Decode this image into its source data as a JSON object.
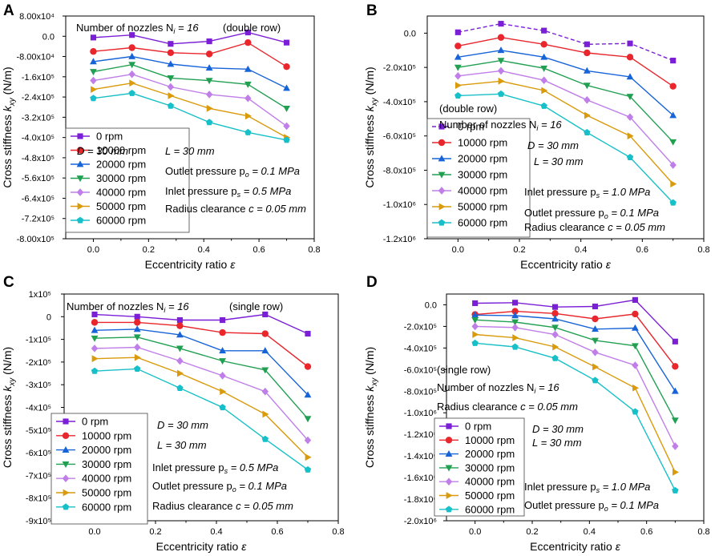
{
  "figure": {
    "title": "Cross stiffness k_xy versus eccentricity ratio, four panels"
  },
  "chart_data": [
    {
      "type": "line",
      "panel": "A",
      "title": "",
      "x": [
        0.0,
        0.14,
        0.28,
        0.42,
        0.56,
        0.7
      ],
      "xlim": [
        -0.1,
        0.8
      ],
      "ylim": [
        -800000,
        80000
      ],
      "xticks": [
        0.0,
        0.2,
        0.4,
        0.6,
        0.8
      ],
      "xtick_labels": [
        "0.0",
        "0.2",
        "0.4",
        "0.6",
        "0.8"
      ],
      "yticks": [
        80000,
        0,
        -80000,
        -160000,
        -240000,
        -320000,
        -400000,
        -480000,
        -560000,
        -640000,
        -720000,
        -800000
      ],
      "ytick_labels": [
        "8.00x10⁴",
        "0.0",
        "-8.00x10⁴",
        "-1.6x10⁵",
        "-2.4x10⁵",
        "-3.2x10⁵",
        "-4.0x10⁵",
        "-4.8x10⁵",
        "-5.6x10⁵",
        "-6.4x10⁵",
        "-7.2x10⁵",
        "-8.00x10⁵"
      ],
      "xlabel": "Eccentricity ratio ε",
      "ylabel_main": "Cross stiffness k",
      "ylabel_sub": "xy",
      "ylabel_unit": " (N/m)",
      "legend": {
        "position": "bottom-left"
      },
      "series": [
        {
          "name": "0 rpm",
          "values": [
            -5000,
            5000,
            -30000,
            -20000,
            15000,
            -25000
          ]
        },
        {
          "name": "10000 rpm",
          "values": [
            -60000,
            -45000,
            -65000,
            -70000,
            -25000,
            -120000
          ]
        },
        {
          "name": "20000 rpm",
          "values": [
            -100000,
            -80000,
            -110000,
            -125000,
            -130000,
            -205000
          ]
        },
        {
          "name": "30000 rpm",
          "values": [
            -140000,
            -112000,
            -165000,
            -175000,
            -190000,
            -285000
          ]
        },
        {
          "name": "40000 rpm",
          "values": [
            -175000,
            -150000,
            -200000,
            -230000,
            -245000,
            -355000
          ]
        },
        {
          "name": "50000 rpm",
          "values": [
            -210000,
            -185000,
            -235000,
            -285000,
            -315000,
            -400000
          ]
        },
        {
          "name": "60000 rpm",
          "values": [
            -245000,
            -225000,
            -275000,
            -340000,
            -380000,
            -410000
          ]
        }
      ],
      "annotations": [
        {
          "text": "Number of nozzles N",
          "sub": "i",
          "tail": " = 16",
          "sub_italic": true,
          "tail_italic": true
        },
        {
          "text": "(double row)"
        },
        {
          "text": "D = 30 mm",
          "italic": true
        },
        {
          "text": "L = 30 mm",
          "italic": true
        },
        {
          "text": "Outlet pressure p",
          "sub": "o",
          "tail": " = 0.1 MPa",
          "tail_italic": true,
          "sub_italic": true
        },
        {
          "text": "Inlet pressure p",
          "sub": "s",
          "tail": " = 0.5 MPa",
          "tail_italic": true,
          "sub_italic": true
        },
        {
          "text": "Radius clearance c = 0.05 mm",
          "italic_from": 17
        }
      ]
    },
    {
      "type": "line",
      "panel": "B",
      "title": "",
      "x": [
        0.0,
        0.14,
        0.28,
        0.42,
        0.56,
        0.7
      ],
      "xlim": [
        -0.1,
        0.8
      ],
      "ylim": [
        -1200000,
        100000
      ],
      "xticks": [
        0.0,
        0.2,
        0.4,
        0.6,
        0.8
      ],
      "xtick_labels": [
        "0.0",
        "0.2",
        "0.4",
        "0.6",
        "0.8"
      ],
      "yticks": [
        0,
        -200000,
        -400000,
        -600000,
        -800000,
        -1000000,
        -1200000
      ],
      "ytick_labels": [
        "0.0",
        "-2.0x10⁵",
        "-4.0x10⁵",
        "-6.0x10⁵",
        "-8.0x10⁵",
        "-1.0x10⁶",
        "-1.2x10⁶"
      ],
      "xlabel": "Eccentricity ratio ε",
      "ylabel_main": "Cross stiffness k",
      "ylabel_sub": "xy",
      "ylabel_unit": " (N/m)",
      "legend": {
        "position": "bottom-left"
      },
      "series": [
        {
          "name": "0 rpm",
          "values": [
            5000,
            55000,
            15000,
            -65000,
            -60000,
            -160000
          ]
        },
        {
          "name": "10000 rpm",
          "values": [
            -75000,
            -25000,
            -65000,
            -115000,
            -140000,
            -310000
          ]
        },
        {
          "name": "20000 rpm",
          "values": [
            -140000,
            -100000,
            -140000,
            -220000,
            -255000,
            -480000
          ]
        },
        {
          "name": "30000 rpm",
          "values": [
            -200000,
            -160000,
            -205000,
            -305000,
            -370000,
            -635000
          ]
        },
        {
          "name": "40000 rpm",
          "values": [
            -250000,
            -220000,
            -275000,
            -390000,
            -490000,
            -770000
          ]
        },
        {
          "name": "50000 rpm",
          "values": [
            -305000,
            -280000,
            -335000,
            -480000,
            -600000,
            -880000
          ]
        },
        {
          "name": "60000 rpm",
          "values": [
            -365000,
            -355000,
            -425000,
            -580000,
            -725000,
            -990000
          ]
        }
      ],
      "annotations": [
        {
          "text": "(double row)"
        },
        {
          "text": "Number of nozzles N",
          "sub": "i",
          "tail": " = 16",
          "sub_italic": true,
          "tail_italic": true
        },
        {
          "text": "D = 30 mm",
          "italic": true
        },
        {
          "text": "L = 30 mm",
          "italic": true
        },
        {
          "text": "Inlet pressure p",
          "sub": "s",
          "tail": " = 1.0 MPa",
          "tail_italic": true,
          "sub_italic": true
        },
        {
          "text": "Outlet pressure p",
          "sub": "o",
          "tail": " = 0.1 MPa",
          "tail_italic": true,
          "sub_italic": true
        },
        {
          "text": "Radius clearance c = 0.05 mm",
          "italic_from": 17
        }
      ]
    },
    {
      "type": "line",
      "panel": "C",
      "title": "",
      "x": [
        0.0,
        0.14,
        0.28,
        0.42,
        0.56,
        0.7
      ],
      "xlim": [
        -0.1,
        0.8
      ],
      "ylim": [
        -900000,
        100000
      ],
      "xticks": [
        0.0,
        0.2,
        0.4,
        0.6,
        0.8
      ],
      "xtick_labels": [
        "0.0",
        "0.2",
        "0.4",
        "0.6",
        "0.8"
      ],
      "yticks": [
        100000,
        0,
        -100000,
        -200000,
        -300000,
        -400000,
        -500000,
        -600000,
        -700000,
        -800000,
        -900000
      ],
      "ytick_labels": [
        "1x10⁵",
        "0",
        "-1x10⁵",
        "-2x10⁵",
        "-3x10⁵",
        "-4x10⁵",
        "-5x10⁵",
        "-6x10⁵",
        "-7x10⁵",
        "-8x10⁵",
        "-9x10⁵"
      ],
      "xlabel": "Eccentricity ratio ε",
      "ylabel_main": "Cross stiffness k",
      "ylabel_sub": "xy",
      "ylabel_unit": " (N/m)",
      "legend": {
        "position": "bottom-left"
      },
      "series": [
        {
          "name": "0 rpm",
          "values": [
            10000,
            0,
            -15000,
            -15000,
            10000,
            -75000
          ]
        },
        {
          "name": "10000 rpm",
          "values": [
            -25000,
            -25000,
            -40000,
            -70000,
            -75000,
            -220000
          ]
        },
        {
          "name": "20000 rpm",
          "values": [
            -60000,
            -55000,
            -80000,
            -150000,
            -150000,
            -345000
          ]
        },
        {
          "name": "30000 rpm",
          "values": [
            -95000,
            -90000,
            -140000,
            -195000,
            -235000,
            -450000
          ]
        },
        {
          "name": "40000 rpm",
          "values": [
            -140000,
            -135000,
            -195000,
            -260000,
            -330000,
            -545000
          ]
        },
        {
          "name": "50000 rpm",
          "values": [
            -185000,
            -180000,
            -250000,
            -330000,
            -430000,
            -620000
          ]
        },
        {
          "name": "60000 rpm",
          "values": [
            -240000,
            -230000,
            -315000,
            -400000,
            -540000,
            -675000
          ]
        }
      ],
      "annotations": [
        {
          "text": "Number of nozzles N",
          "sub": "i",
          "tail": " = 16",
          "sub_italic": true,
          "tail_italic": true
        },
        {
          "text": "(single row)"
        },
        {
          "text": "D = 30 mm",
          "italic": true
        },
        {
          "text": "L = 30 mm",
          "italic": true
        },
        {
          "text": "Inlet pressure p",
          "sub": "s",
          "tail": " = 0.5 MPa",
          "tail_italic": true,
          "sub_italic": true
        },
        {
          "text": "Outlet pressure p",
          "sub": "o",
          "tail": " = 0.1 MPa",
          "tail_italic": true,
          "sub_italic": true
        },
        {
          "text": "Radius clearance c = 0.05 mm",
          "italic_from": 17
        }
      ]
    },
    {
      "type": "line",
      "panel": "D",
      "title": "",
      "x": [
        0.0,
        0.14,
        0.28,
        0.42,
        0.56,
        0.7
      ],
      "xlim": [
        -0.1,
        0.8
      ],
      "ylim": [
        -2000000,
        100000
      ],
      "xticks": [
        0.0,
        0.2,
        0.4,
        0.6,
        0.8
      ],
      "xtick_labels": [
        "0.0",
        "0.2",
        "0.4",
        "0.6",
        "0.8"
      ],
      "yticks": [
        0,
        -200000,
        -400000,
        -600000,
        -800000,
        -1000000,
        -1200000,
        -1400000,
        -1600000,
        -1800000,
        -2000000
      ],
      "ytick_labels": [
        "0.0",
        "-2.0x10⁵",
        "-4.0x10⁵",
        "-6.0x10⁵",
        "-8.0x10⁵",
        "-1.0x10⁶",
        "-1.2x10⁶",
        "-1.4x10⁶",
        "-1.6x10⁶",
        "-1.8x10⁶",
        "-2.0x10⁶"
      ],
      "xlabel": "Eccentricity ratio ε",
      "ylabel_main": "Cross stiffness k",
      "ylabel_sub": "xy",
      "ylabel_unit": " (N/m)",
      "legend": {
        "position": "bottom-left"
      },
      "series": [
        {
          "name": "0 rpm",
          "values": [
            15000,
            20000,
            -20000,
            -15000,
            45000,
            -340000
          ]
        },
        {
          "name": "10000 rpm",
          "values": [
            -90000,
            -60000,
            -80000,
            -130000,
            -85000,
            -570000
          ]
        },
        {
          "name": "20000 rpm",
          "values": [
            -95000,
            -100000,
            -130000,
            -225000,
            -215000,
            -800000
          ]
        },
        {
          "name": "30000 rpm",
          "values": [
            -140000,
            -160000,
            -210000,
            -330000,
            -380000,
            -1070000
          ]
        },
        {
          "name": "40000 rpm",
          "values": [
            -200000,
            -210000,
            -275000,
            -440000,
            -560000,
            -1310000
          ]
        },
        {
          "name": "50000 rpm",
          "values": [
            -275000,
            -305000,
            -390000,
            -575000,
            -770000,
            -1550000
          ]
        },
        {
          "name": "60000 rpm",
          "values": [
            -355000,
            -390000,
            -495000,
            -700000,
            -990000,
            -1720000
          ]
        }
      ],
      "annotations": [
        {
          "text": "(single row)"
        },
        {
          "text": "Number of nozzles N",
          "sub": "i",
          "tail": " = 16",
          "sub_italic": true,
          "tail_italic": true
        },
        {
          "text": "Radius clearance c = 0.05 mm",
          "italic_from": 17
        },
        {
          "text": "D = 30 mm",
          "italic": true
        },
        {
          "text": "L = 30 mm",
          "italic": true
        },
        {
          "text": "Inlet pressure p",
          "sub": "s",
          "tail": " = 1.0 MPa",
          "tail_italic": true,
          "sub_italic": true
        },
        {
          "text": "Outlet pressure p",
          "sub": "o",
          "tail": " = 0.1 MPa",
          "tail_italic": true,
          "sub_italic": true
        }
      ]
    }
  ],
  "series_style": {
    "colors": [
      "#7b1fd6",
      "#e8262c",
      "#1764d8",
      "#22a052",
      "#c07ee8",
      "#d99a0b",
      "#17c0c8"
    ],
    "markers": [
      "square",
      "circle",
      "triangle-up",
      "triangle-down",
      "diamond",
      "triangle-right",
      "pentagon"
    ]
  }
}
